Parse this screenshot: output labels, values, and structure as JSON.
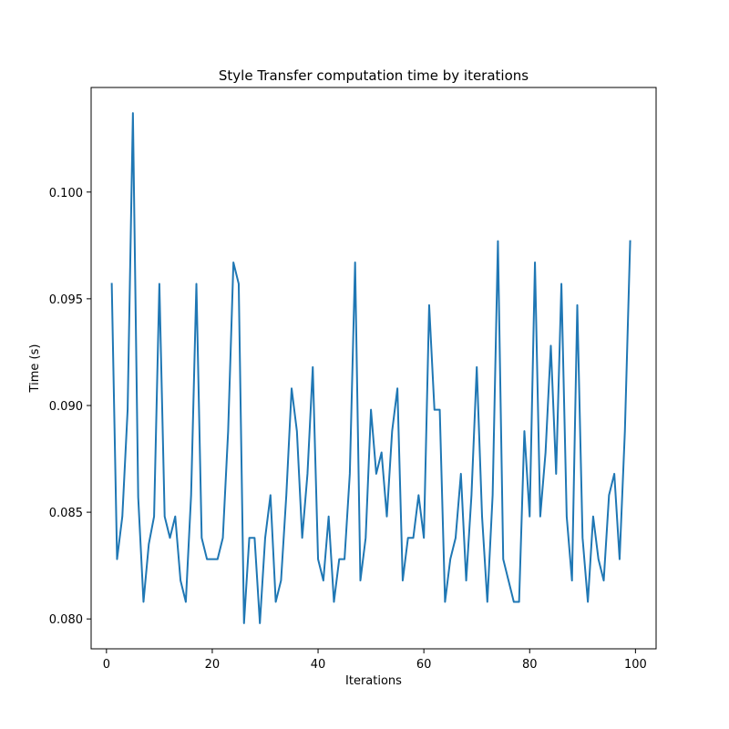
{
  "chart_data": {
    "type": "line",
    "title": "Style Transfer computation time by iterations",
    "xlabel": "Iterations",
    "ylabel": "Time (s)",
    "xlim": [
      -2.9,
      103.9
    ],
    "ylim": [
      0.0786,
      0.1049
    ],
    "xticks": [
      0,
      20,
      40,
      60,
      80,
      100
    ],
    "yticks": [
      0.08,
      0.085,
      0.09,
      0.095,
      0.1
    ],
    "xtick_labels": [
      "0",
      "20",
      "40",
      "60",
      "80",
      "100"
    ],
    "ytick_labels": [
      "0.080",
      "0.085",
      "0.090",
      "0.095",
      "0.100"
    ],
    "grid": false,
    "line_color": "#1f77b4",
    "series": [
      {
        "x": [
          1,
          2,
          3,
          4,
          5,
          6,
          7,
          8,
          9,
          10,
          11,
          12,
          13,
          14,
          15,
          16,
          17,
          18,
          19,
          20,
          21,
          22,
          23,
          24,
          25,
          26,
          27,
          28,
          29,
          30,
          31,
          32,
          33,
          34,
          35,
          36,
          37,
          38,
          39,
          40,
          41,
          42,
          43,
          44,
          45,
          46,
          47,
          48,
          49,
          50,
          51,
          52,
          53,
          54,
          55,
          56,
          57,
          58,
          59,
          60,
          61,
          62,
          63,
          64,
          65,
          66,
          67,
          68,
          69,
          70,
          71,
          72,
          73,
          74,
          75,
          76,
          77,
          78,
          79,
          80,
          81,
          82,
          83,
          84,
          85,
          86,
          87,
          88,
          89,
          90,
          91,
          92,
          93,
          94,
          95,
          96,
          97,
          98,
          99
        ],
        "values": [
          0.0957,
          0.0828,
          0.0848,
          0.0898,
          0.1037,
          0.0857,
          0.0808,
          0.0835,
          0.0848,
          0.0957,
          0.0848,
          0.0838,
          0.0848,
          0.0818,
          0.0808,
          0.0858,
          0.0957,
          0.0838,
          0.0828,
          0.0828,
          0.0828,
          0.0838,
          0.0888,
          0.0967,
          0.0957,
          0.0798,
          0.0838,
          0.0838,
          0.0798,
          0.0838,
          0.0858,
          0.0808,
          0.0818,
          0.0858,
          0.0908,
          0.0888,
          0.0838,
          0.0868,
          0.0918,
          0.0828,
          0.0818,
          0.0848,
          0.0808,
          0.0828,
          0.0828,
          0.0868,
          0.0967,
          0.0818,
          0.0838,
          0.0898,
          0.0868,
          0.0878,
          0.0848,
          0.0888,
          0.0908,
          0.0818,
          0.0838,
          0.0838,
          0.0858,
          0.0838,
          0.0947,
          0.0898,
          0.0898,
          0.0808,
          0.0828,
          0.0838,
          0.0868,
          0.0818,
          0.0858,
          0.0918,
          0.0848,
          0.0808,
          0.0858,
          0.0977,
          0.0828,
          0.0818,
          0.0808,
          0.0808,
          0.0888,
          0.0848,
          0.0967,
          0.0848,
          0.0878,
          0.0928,
          0.0868,
          0.0957,
          0.0848,
          0.0818,
          0.0947,
          0.0838,
          0.0808,
          0.0848,
          0.0828,
          0.0818,
          0.0858,
          0.0868,
          0.0828,
          0.0888,
          0.0977
        ]
      }
    ]
  }
}
